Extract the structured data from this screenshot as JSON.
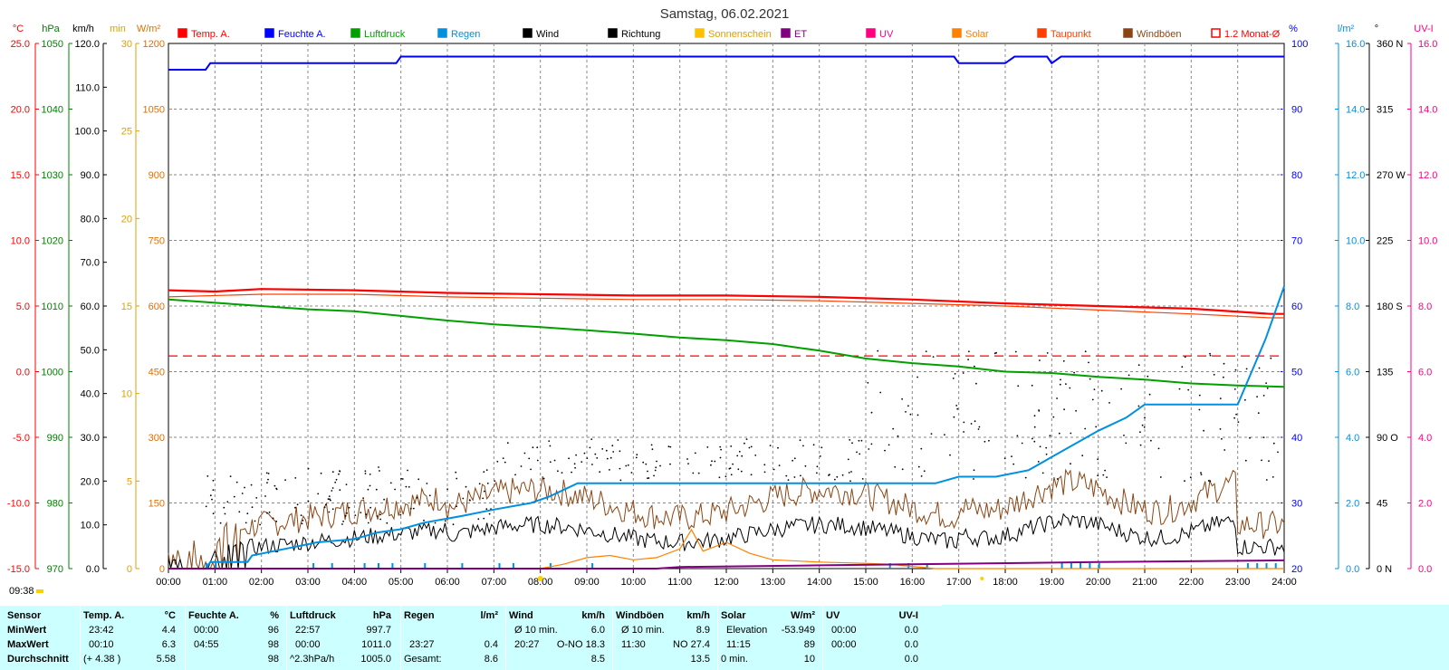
{
  "chart_data": {
    "type": "line",
    "title": "Samstag, 06.02.2021",
    "start_time_label": "09:38",
    "x_ticks": [
      "00:00",
      "01:00",
      "02:00",
      "03:00",
      "04:00",
      "05:00",
      "06:00",
      "07:00",
      "08:00",
      "09:00",
      "10:00",
      "11:00",
      "12:00",
      "13:00",
      "14:00",
      "15:00",
      "16:00",
      "17:00",
      "18:00",
      "19:00",
      "20:00",
      "21:00",
      "22:00",
      "23:00",
      "24:00"
    ],
    "left_axes": [
      {
        "unit": "°C",
        "color": "#ff0000",
        "min": -15,
        "max": 25,
        "ticks": [
          "25.0",
          "20.0",
          "15.0",
          "10.0",
          "5.0",
          "0.0",
          "-5.0",
          "-10.0",
          "-15.0"
        ]
      },
      {
        "unit": "hPa",
        "color": "#008000",
        "min": 970,
        "max": 1050,
        "ticks": [
          "1050",
          "1040",
          "1030",
          "1020",
          "1010",
          "1000",
          "990",
          "980",
          "970"
        ]
      },
      {
        "unit": "km/h",
        "color": "#000000",
        "min": 0,
        "max": 120,
        "ticks": [
          "120.0",
          "110.0",
          "100.0",
          "90.0",
          "80.0",
          "70.0",
          "60.0",
          "50.0",
          "40.0",
          "30.0",
          "20.0",
          "10.0",
          "0.0"
        ]
      },
      {
        "unit": "min",
        "color": "#e0a000",
        "min": 0,
        "max": 30,
        "ticks": [
          "30",
          "25",
          "20",
          "15",
          "10",
          "5",
          "0"
        ]
      },
      {
        "unit": "W/m²",
        "color": "#e07000",
        "min": 0,
        "max": 1200,
        "ticks": [
          "1200",
          "1050",
          "900",
          "750",
          "600",
          "450",
          "300",
          "150",
          "0"
        ]
      }
    ],
    "right_axes": [
      {
        "unit": "%",
        "color": "#0000ff",
        "min": 20,
        "max": 100,
        "ticks": [
          "100",
          "90",
          "80",
          "70",
          "60",
          "50",
          "40",
          "30",
          "20"
        ]
      },
      {
        "unit": "l/m²",
        "color": "#0090e0",
        "min": 0,
        "max": 16,
        "ticks": [
          "16.0",
          "14.0",
          "12.0",
          "10.0",
          "8.0",
          "6.0",
          "4.0",
          "2.0",
          "0.0"
        ]
      },
      {
        "unit": "°",
        "color": "#000000",
        "min": 0,
        "max": 360,
        "ticks": [
          "360 N",
          "315",
          "270 W",
          "225",
          "180 S",
          "135",
          "90 O",
          "45",
          "0 N"
        ]
      },
      {
        "unit": "UV-I",
        "color": "#ff0080",
        "min": 0,
        "max": 16,
        "ticks": [
          "16.0",
          "14.0",
          "12.0",
          "10.0",
          "8.0",
          "6.0",
          "4.0",
          "2.0",
          "0.0"
        ]
      }
    ],
    "legend": [
      {
        "label": "Temp. A.",
        "color": "#ff0000"
      },
      {
        "label": "Feuchte A.",
        "color": "#0000ff"
      },
      {
        "label": "Luftdruck",
        "color": "#00a000"
      },
      {
        "label": "Regen",
        "color": "#0090e0"
      },
      {
        "label": "Wind",
        "color": "#000000"
      },
      {
        "label": "Richtung",
        "color": "#000000"
      },
      {
        "label": "Sonnenschein",
        "color": "#ffc000"
      },
      {
        "label": "ET",
        "color": "#800080"
      },
      {
        "label": "UV",
        "color": "#ff0080"
      },
      {
        "label": "Solar",
        "color": "#ff8000"
      },
      {
        "label": "Taupunkt",
        "color": "#ff4000"
      },
      {
        "label": "Windböen",
        "color": "#8b4513"
      },
      {
        "label": "1.2 Monat-Ø",
        "color": "#ff0000"
      }
    ],
    "series": [
      {
        "name": "Temp. A.",
        "color": "#ff0000",
        "axis": "°C",
        "points": [
          [
            0,
            6.2
          ],
          [
            1,
            6.1
          ],
          [
            2,
            6.3
          ],
          [
            4,
            6.2
          ],
          [
            6,
            6.0
          ],
          [
            8,
            5.9
          ],
          [
            10,
            5.8
          ],
          [
            12,
            5.8
          ],
          [
            14,
            5.7
          ],
          [
            16,
            5.5
          ],
          [
            18,
            5.2
          ],
          [
            20,
            5.0
          ],
          [
            22,
            4.8
          ],
          [
            23.7,
            4.4
          ],
          [
            24,
            4.4
          ]
        ]
      },
      {
        "name": "Taupunkt",
        "color": "#ff4000",
        "axis": "°C",
        "points": [
          [
            0,
            5.7
          ],
          [
            2,
            5.9
          ],
          [
            4,
            5.9
          ],
          [
            6,
            5.7
          ],
          [
            8,
            5.6
          ],
          [
            10,
            5.5
          ],
          [
            12,
            5.5
          ],
          [
            14,
            5.4
          ],
          [
            16,
            5.2
          ],
          [
            18,
            5.0
          ],
          [
            20,
            4.7
          ],
          [
            22,
            4.4
          ],
          [
            23.7,
            4.1
          ],
          [
            24,
            4.1
          ]
        ]
      },
      {
        "name": "Feuchte A.",
        "color": "#0000ff",
        "axis": "%",
        "points": [
          [
            0,
            96
          ],
          [
            0.8,
            96
          ],
          [
            0.9,
            97
          ],
          [
            4.9,
            97
          ],
          [
            5,
            98
          ],
          [
            16.9,
            98
          ],
          [
            17,
            97
          ],
          [
            18,
            97
          ],
          [
            18.2,
            98
          ],
          [
            18.9,
            98
          ],
          [
            19,
            97
          ],
          [
            19.2,
            98
          ],
          [
            24,
            98
          ]
        ]
      },
      {
        "name": "Luftdruck",
        "color": "#00a000",
        "axis": "hPa",
        "points": [
          [
            0,
            1011
          ],
          [
            1,
            1010.5
          ],
          [
            2,
            1010
          ],
          [
            3,
            1009.5
          ],
          [
            4,
            1009.2
          ],
          [
            5,
            1008.5
          ],
          [
            6,
            1007.8
          ],
          [
            7,
            1007.2
          ],
          [
            8,
            1006.8
          ],
          [
            9,
            1006.3
          ],
          [
            10,
            1005.8
          ],
          [
            11,
            1005.2
          ],
          [
            12,
            1004.8
          ],
          [
            13,
            1004.2
          ],
          [
            14,
            1003.2
          ],
          [
            15,
            1002
          ],
          [
            16,
            1001.3
          ],
          [
            17,
            1000.8
          ],
          [
            18,
            1000
          ],
          [
            19,
            999.8
          ],
          [
            20,
            999.2
          ],
          [
            21,
            998.8
          ],
          [
            22,
            998.2
          ],
          [
            23,
            997.9
          ],
          [
            24,
            997.7
          ]
        ]
      },
      {
        "name": "Regen",
        "color": "#0090e0",
        "axis": "l/m²",
        "points": [
          [
            0,
            0
          ],
          [
            0.8,
            0
          ],
          [
            0.9,
            0.2
          ],
          [
            1.7,
            0.2
          ],
          [
            1.8,
            0.4
          ],
          [
            2.5,
            0.6
          ],
          [
            3.2,
            0.8
          ],
          [
            4,
            0.9
          ],
          [
            4.5,
            1.1
          ],
          [
            5,
            1.2
          ],
          [
            5.5,
            1.4
          ],
          [
            6.3,
            1.6
          ],
          [
            7,
            1.8
          ],
          [
            7.8,
            2.0
          ],
          [
            8.2,
            2.2
          ],
          [
            8.8,
            2.6
          ],
          [
            16.5,
            2.6
          ],
          [
            17,
            2.8
          ],
          [
            17.8,
            2.8
          ],
          [
            18.5,
            3.0
          ],
          [
            19,
            3.4
          ],
          [
            20,
            4.2
          ],
          [
            20.6,
            4.6
          ],
          [
            21,
            5.0
          ],
          [
            23,
            5.0
          ],
          [
            23.3,
            6.0
          ],
          [
            23.6,
            7.0
          ],
          [
            24,
            8.6
          ]
        ]
      },
      {
        "name": "Solar",
        "color": "#ff8000",
        "axis": "W/m²",
        "points": [
          [
            0,
            0
          ],
          [
            8,
            0
          ],
          [
            8.5,
            10
          ],
          [
            9,
            25
          ],
          [
            9.5,
            30
          ],
          [
            10,
            20
          ],
          [
            10.5,
            25
          ],
          [
            11,
            45
          ],
          [
            11.25,
            89
          ],
          [
            11.5,
            40
          ],
          [
            12,
            60
          ],
          [
            12.5,
            35
          ],
          [
            13,
            20
          ],
          [
            14,
            15
          ],
          [
            15,
            12
          ],
          [
            15.5,
            10
          ],
          [
            16,
            5
          ],
          [
            16.5,
            0
          ],
          [
            24,
            0
          ]
        ]
      },
      {
        "name": "ET",
        "color": "#800080",
        "axis": "l/m²",
        "points": [
          [
            0,
            0
          ],
          [
            10.5,
            0
          ],
          [
            11,
            0.05
          ],
          [
            14,
            0.1
          ],
          [
            17,
            0.15
          ],
          [
            20,
            0.2
          ],
          [
            24,
            0.25
          ]
        ]
      }
    ],
    "reference_line": {
      "name": "1.2 Monat-Ø",
      "value": 1.2,
      "axis": "°C"
    },
    "wind_amplitude": {
      "Wind": 8.5,
      "Windböen": 13.5
    }
  },
  "summary": {
    "row_labels": [
      "Sensor",
      "MinWert",
      "MaxWert",
      "Durchschnitt"
    ],
    "groups": [
      {
        "name": "Temp. A.",
        "unit": "°C",
        "min": [
          "23:42",
          "4.4"
        ],
        "max": [
          "00:10",
          "6.3"
        ],
        "avg": [
          "(+ 4.38 )",
          "5.58"
        ]
      },
      {
        "name": "Feuchte A.",
        "unit": "%",
        "min": [
          "00:00",
          "96"
        ],
        "max": [
          "04:55",
          "98"
        ],
        "avg": [
          "",
          "98"
        ]
      },
      {
        "name": "Luftdruck",
        "unit": "hPa",
        "min": [
          "22:57",
          "997.7"
        ],
        "max": [
          "00:00",
          "1011.0"
        ],
        "avg": [
          "^2.3hPa/h",
          "1005.0"
        ]
      },
      {
        "name": "Regen",
        "unit": "l/m²",
        "min": [
          "",
          ""
        ],
        "max": [
          "23:27",
          "0.4"
        ],
        "avg": [
          "Gesamt:",
          "8.6"
        ]
      },
      {
        "name": "Wind",
        "unit": "km/h",
        "min": [
          "Ø 10 min.",
          "6.0"
        ],
        "max": [
          "20:27",
          "O-NO 18.3"
        ],
        "avg": [
          "",
          "8.5"
        ]
      },
      {
        "name": "Windböen",
        "unit": "km/h",
        "min": [
          "Ø 10 min.",
          "8.9"
        ],
        "max": [
          "11:30",
          "NO 27.4"
        ],
        "avg": [
          "",
          "13.5"
        ]
      },
      {
        "name": "Solar",
        "unit": "W/m²",
        "min": [
          "Elevation",
          "-53.949"
        ],
        "max": [
          "11:15",
          "89"
        ],
        "avg": [
          "0 min.",
          "10"
        ]
      },
      {
        "name": "UV",
        "unit": "UV-I",
        "min": [
          "00:00",
          "0.0"
        ],
        "max": [
          "00:00",
          "0.0"
        ],
        "avg": [
          "",
          "0.0"
        ]
      }
    ]
  }
}
